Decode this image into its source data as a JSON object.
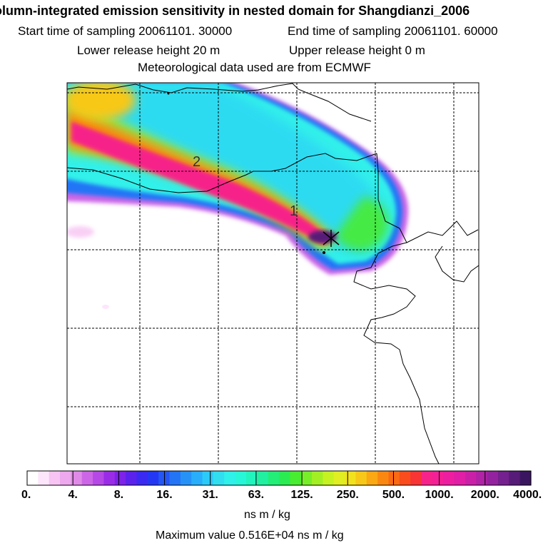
{
  "header": {
    "title": "olumn-integrated emission sensitivity in nested domain for Shangdianzi_2006",
    "start_label": "Start time of sampling 20061101. 30000",
    "end_label": "End time of sampling 20061101. 60000",
    "lower_label": "Lower release height   20 m",
    "upper_label": "Upper release height    0 m",
    "met_label": "Meteorological data used are from ECMWF"
  },
  "map": {
    "contour_labels": [
      "2",
      "1"
    ],
    "release_marker": "receptor-star"
  },
  "legend": {
    "ticks": [
      "0.",
      "4.",
      "8.",
      "16.",
      "31.",
      "63.",
      "125.",
      "250.",
      "500.",
      "1000.",
      "2000.",
      "4000."
    ],
    "unit": "ns m / kg",
    "colors": [
      "#ffffff",
      "#fde6fb",
      "#f7c4f3",
      "#eea8ee",
      "#e08ae8",
      "#cc66e6",
      "#b548e6",
      "#9a2ce8",
      "#7d22e8",
      "#5a22ec",
      "#3a2af2",
      "#2438f4",
      "#2456f4",
      "#2474f6",
      "#2692f8",
      "#28aefa",
      "#2ccaf8",
      "#30def0",
      "#30f0ea",
      "#28f6d8",
      "#22f4be",
      "#20f0a0",
      "#22ee78",
      "#2aec52",
      "#48ec30",
      "#78ee28",
      "#a2f024",
      "#c6f222",
      "#e0ee22",
      "#f2e21e",
      "#f8c818",
      "#faa814",
      "#fa8810",
      "#fa6a14",
      "#fa4c1c",
      "#f83434",
      "#f6248a",
      "#f42096",
      "#ee1ea0",
      "#e01ea6",
      "#ca20a8",
      "#b022a6",
      "#94229e",
      "#74208e",
      "#561c78",
      "#3a1660"
    ]
  },
  "footer": {
    "max_label": "Maximum value  0.516E+04 ns m / kg"
  }
}
